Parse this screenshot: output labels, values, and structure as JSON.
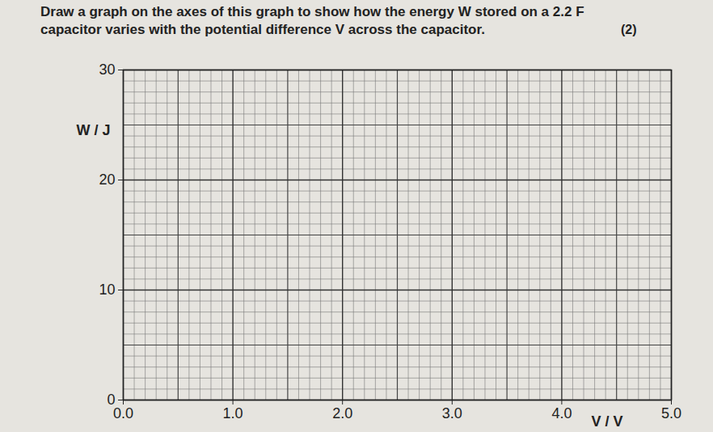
{
  "chart_data": {
    "type": "line",
    "title": "Draw a graph on the axes of this graph to show how the energy W stored on a 2.2 F capacitor varies with the potential difference V across the capacitor.",
    "annotations": [
      "(2)"
    ],
    "x_label": "V / V",
    "y_label": "W / J",
    "xlim": [
      0,
      5
    ],
    "xticks": [
      0,
      1,
      2,
      3,
      4,
      5
    ],
    "ylim": [
      0,
      30
    ],
    "yticks": [
      0,
      10,
      20,
      30
    ],
    "grid": true
  }
}
